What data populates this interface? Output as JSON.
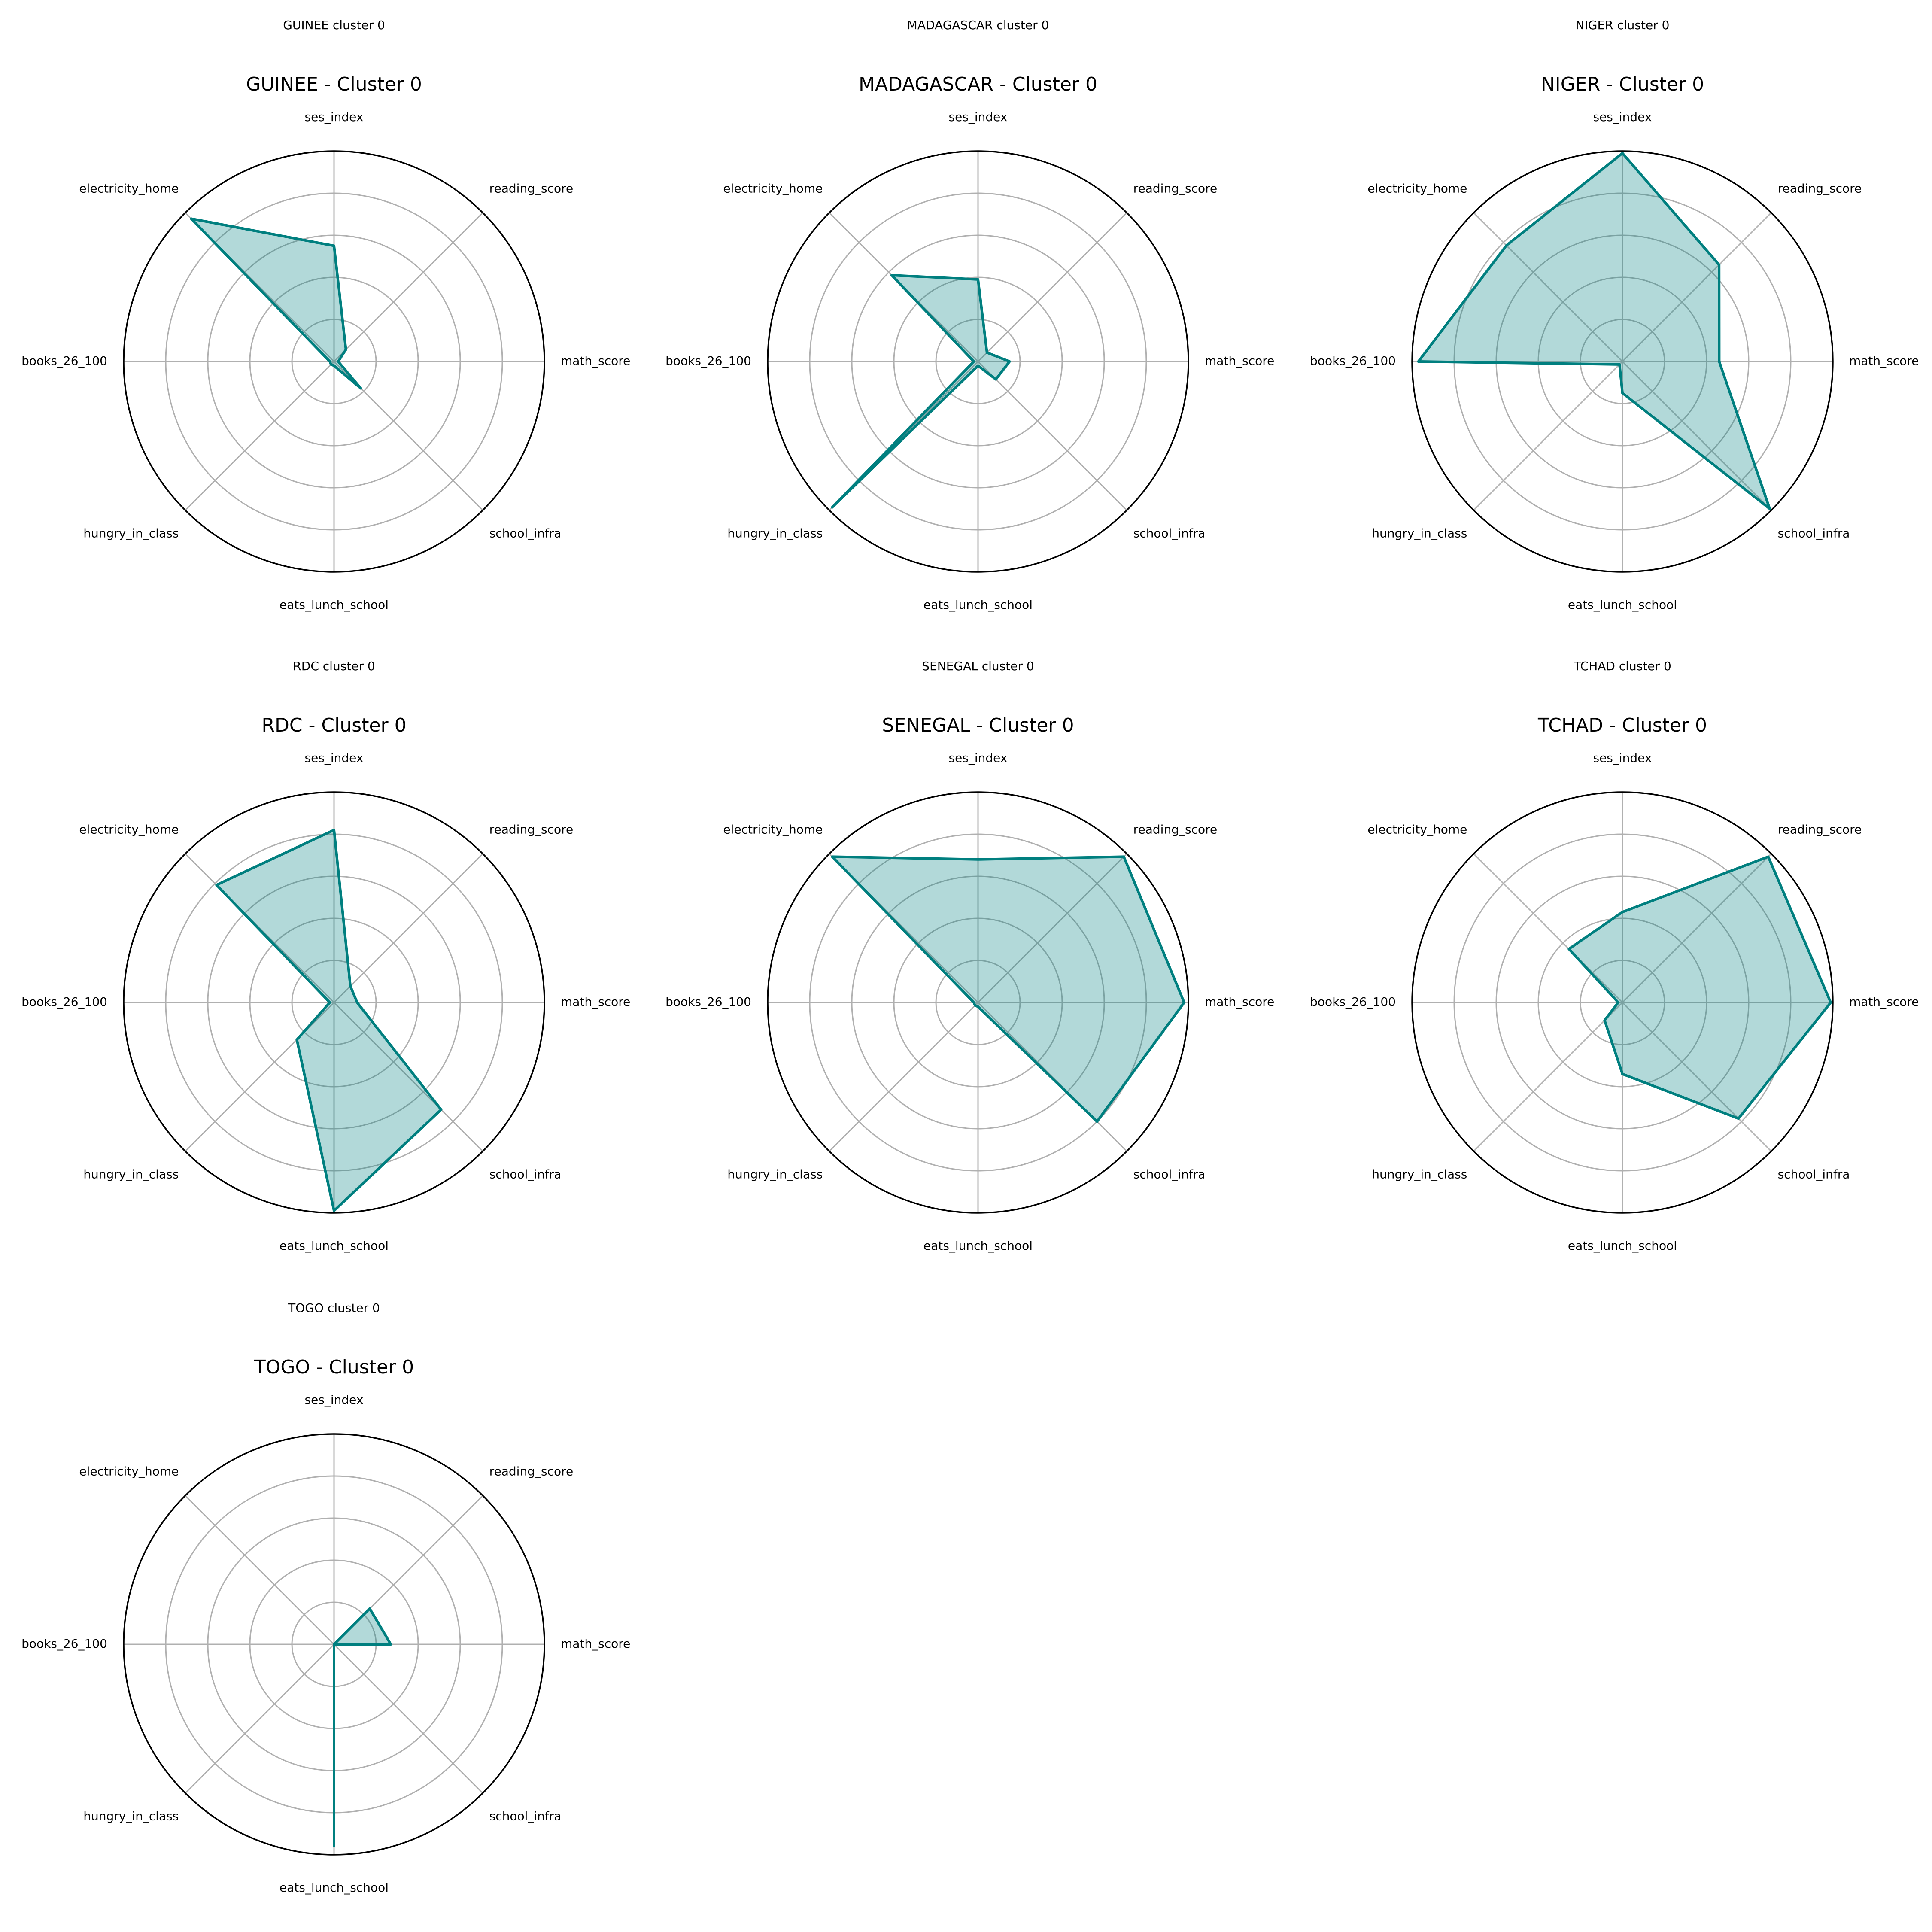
{
  "colors": {
    "series": "#007f7f",
    "fill": "#008080",
    "grid": "#b0b0b0",
    "frame": "#000000"
  },
  "chart_data": [
    {
      "type": "radar",
      "suptitle": "GUINEE cluster 0",
      "title": "GUINEE - Cluster 0",
      "axes": [
        "ses_index",
        "reading_score",
        "math_score",
        "school_infra",
        "eats_lunch_school",
        "hungry_in_class",
        "books_26_100",
        "electricity_home"
      ],
      "values": [
        0.55,
        0.08,
        0.02,
        0.18,
        0.02,
        0.02,
        0.02,
        0.96
      ],
      "ylim": [
        0,
        1
      ],
      "grid": true
    },
    {
      "type": "radar",
      "suptitle": "MADAGASCAR cluster 0",
      "title": "MADAGASCAR - Cluster 0",
      "axes": [
        "ses_index",
        "reading_score",
        "math_score",
        "school_infra",
        "eats_lunch_school",
        "hungry_in_class",
        "books_26_100",
        "electricity_home"
      ],
      "values": [
        0.39,
        0.06,
        0.15,
        0.12,
        0.02,
        0.98,
        0.02,
        0.58
      ],
      "ylim": [
        0,
        1
      ],
      "grid": true
    },
    {
      "type": "radar",
      "suptitle": "NIGER cluster 0",
      "title": "NIGER - Cluster 0",
      "axes": [
        "ses_index",
        "reading_score",
        "math_score",
        "school_infra",
        "eats_lunch_school",
        "hungry_in_class",
        "books_26_100",
        "electricity_home"
      ],
      "values": [
        0.99,
        0.65,
        0.46,
        0.99,
        0.15,
        0.02,
        0.97,
        0.78
      ],
      "ylim": [
        0,
        1
      ],
      "grid": true
    },
    {
      "type": "radar",
      "suptitle": "RDC cluster 0",
      "title": "RDC - Cluster 0",
      "axes": [
        "ses_index",
        "reading_score",
        "math_score",
        "school_infra",
        "eats_lunch_school",
        "hungry_in_class",
        "books_26_100",
        "electricity_home"
      ],
      "values": [
        0.82,
        0.11,
        0.11,
        0.72,
        0.99,
        0.25,
        0.02,
        0.79
      ],
      "ylim": [
        0,
        1
      ],
      "grid": true
    },
    {
      "type": "radar",
      "suptitle": "SENEGAL cluster 0",
      "title": "SENEGAL - Cluster 0",
      "axes": [
        "ses_index",
        "reading_score",
        "math_score",
        "school_infra",
        "eats_lunch_school",
        "hungry_in_class",
        "books_26_100",
        "electricity_home"
      ],
      "values": [
        0.68,
        0.98,
        0.98,
        0.8,
        0.02,
        0.02,
        0.02,
        0.98
      ],
      "ylim": [
        0,
        1
      ],
      "grid": true
    },
    {
      "type": "radar",
      "suptitle": "TCHAD cluster 0",
      "title": "TCHAD - Cluster 0",
      "axes": [
        "ses_index",
        "reading_score",
        "math_score",
        "school_infra",
        "eats_lunch_school",
        "hungry_in_class",
        "books_26_100",
        "electricity_home"
      ],
      "values": [
        0.43,
        0.98,
        0.99,
        0.78,
        0.34,
        0.12,
        0.02,
        0.36
      ],
      "ylim": [
        0,
        1
      ],
      "grid": true
    },
    {
      "type": "radar",
      "suptitle": "TOGO cluster 0",
      "title": "TOGO - Cluster 0",
      "axes": [
        "ses_index",
        "reading_score",
        "math_score",
        "school_infra",
        "eats_lunch_school",
        "hungry_in_class",
        "books_26_100",
        "electricity_home"
      ],
      "values": [
        0.0,
        0.24,
        0.27,
        0.0,
        0.96,
        0.0,
        0.0,
        0.0
      ],
      "ylim": [
        0,
        1
      ],
      "grid": true
    }
  ]
}
